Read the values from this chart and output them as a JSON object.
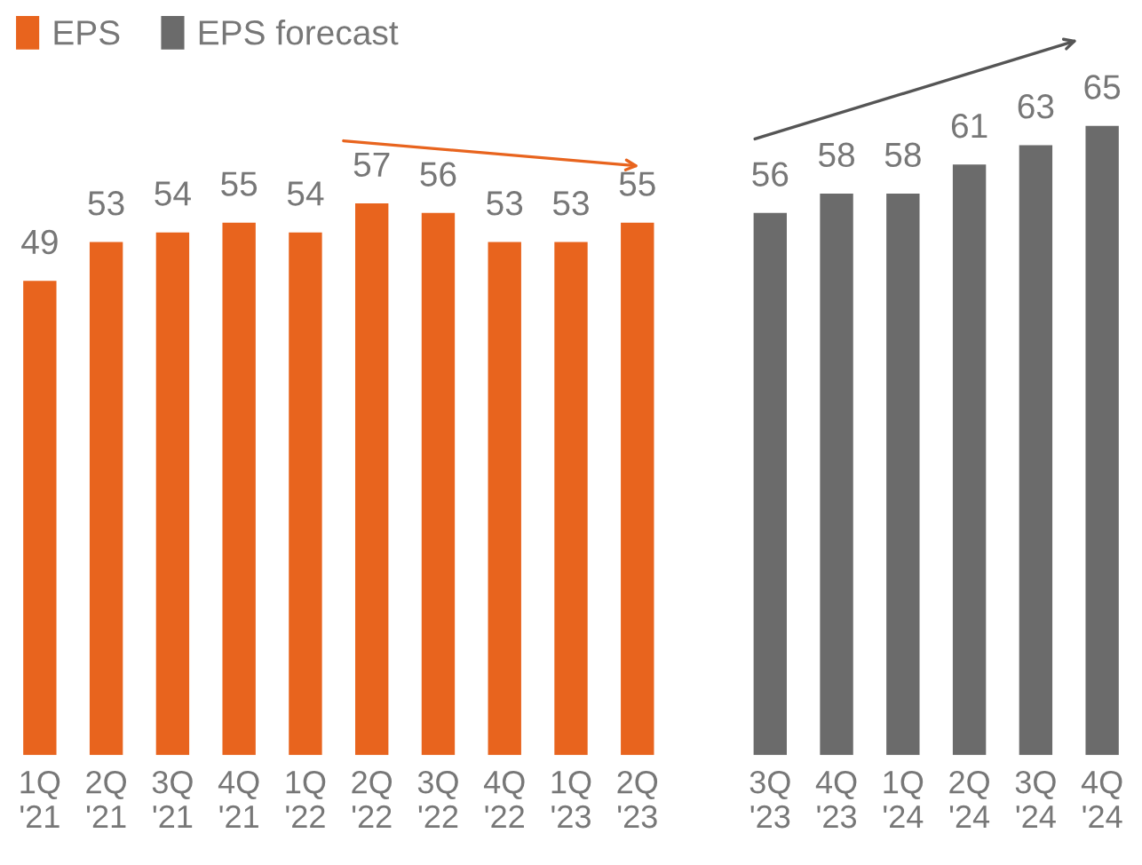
{
  "chart_data": {
    "type": "bar",
    "categories": [
      "1Q\n'21",
      "2Q\n'21",
      "3Q\n'21",
      "4Q\n'21",
      "1Q\n'22",
      "2Q\n'22",
      "3Q\n'22",
      "4Q\n'22",
      "1Q\n'23",
      "2Q\n'23",
      null,
      "3Q\n'23",
      "4Q\n'23",
      "1Q\n'24",
      "2Q\n'24",
      "3Q\n'24",
      "4Q\n'24"
    ],
    "series": [
      {
        "name": "EPS",
        "color": "#e8641e",
        "values": [
          49,
          53,
          54,
          55,
          54,
          57,
          56,
          53,
          53,
          55,
          null,
          null,
          null,
          null,
          null,
          null,
          null
        ]
      },
      {
        "name": "EPS forecast",
        "color": "#6b6b6b",
        "values": [
          null,
          null,
          null,
          null,
          null,
          null,
          null,
          null,
          null,
          null,
          null,
          56,
          58,
          58,
          61,
          63,
          65
        ]
      }
    ],
    "data_labels": true,
    "legend": "top left",
    "grid": false
  }
}
